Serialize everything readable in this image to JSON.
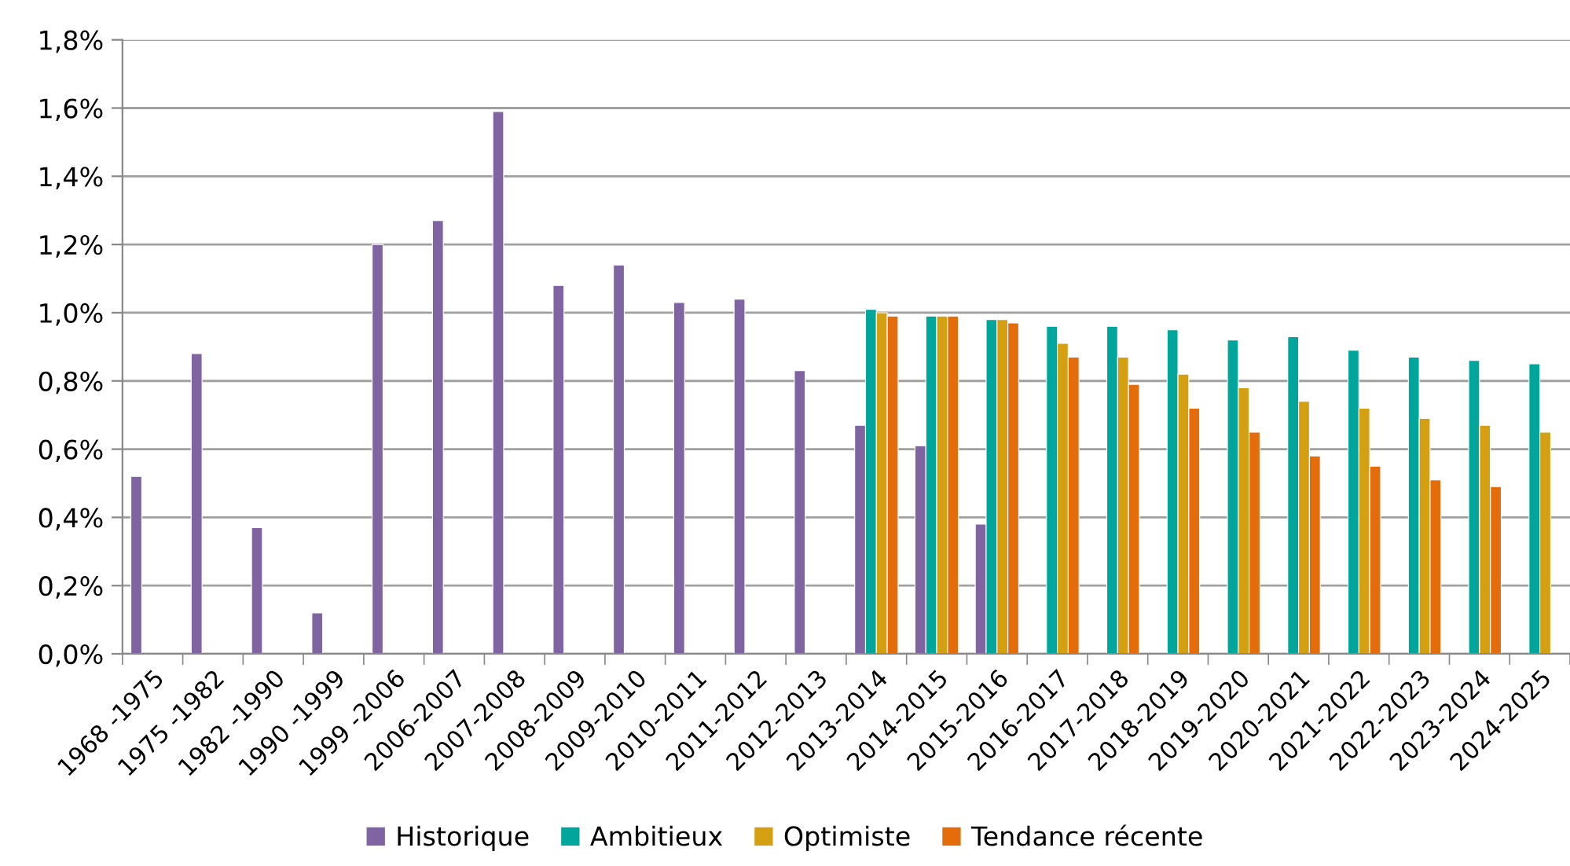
{
  "chart_data": {
    "type": "bar",
    "categories": [
      "1968 -1975",
      "1975 -1982",
      "1982 -1990",
      "1990 -1999",
      "1999 -2006",
      "2006-2007",
      "2007-2008",
      "2008-2009",
      "2009-2010",
      "2010-2011",
      "2011-2012",
      "2012-2013",
      "2013-2014",
      "2014-2015",
      "2015-2016",
      "2016-2017",
      "2017-2018",
      "2018-2019",
      "2019-2020",
      "2020-2021",
      "2021-2022",
      "2022-2023",
      "2023-2024",
      "2024-2025"
    ],
    "series": [
      {
        "name": "Historique",
        "color": "#8064a2",
        "values": [
          0.52,
          0.88,
          0.37,
          0.12,
          1.2,
          1.27,
          1.59,
          1.08,
          1.14,
          1.03,
          1.04,
          0.83,
          0.67,
          0.61,
          0.38,
          null,
          null,
          null,
          null,
          null,
          null,
          null,
          null,
          null
        ]
      },
      {
        "name": "Ambitieux",
        "color": "#00a59b",
        "values": [
          null,
          null,
          null,
          null,
          null,
          null,
          null,
          null,
          null,
          null,
          null,
          null,
          1.01,
          0.99,
          0.98,
          0.96,
          0.96,
          0.95,
          0.92,
          0.93,
          0.89,
          0.87,
          0.86,
          0.85
        ]
      },
      {
        "name": "Optimiste",
        "color": "#d4a011",
        "values": [
          null,
          null,
          null,
          null,
          null,
          null,
          null,
          null,
          null,
          null,
          null,
          null,
          1.0,
          0.99,
          0.98,
          0.91,
          0.87,
          0.82,
          0.78,
          0.74,
          0.72,
          0.69,
          0.67,
          0.65
        ]
      },
      {
        "name": "Tendance récente",
        "color": "#e46c0a",
        "values": [
          null,
          null,
          null,
          null,
          null,
          null,
          null,
          null,
          null,
          null,
          null,
          null,
          0.99,
          0.99,
          0.97,
          0.87,
          0.79,
          0.72,
          0.65,
          0.58,
          0.55,
          0.51,
          0.49,
          null
        ]
      }
    ],
    "ylim": [
      0,
      1.8
    ],
    "yticks": [
      {
        "value": 0,
        "label": "0,0%"
      },
      {
        "value": 0.2,
        "label": "0,2%"
      },
      {
        "value": 0.4,
        "label": "0,4%"
      },
      {
        "value": 0.6,
        "label": "0,6%"
      },
      {
        "value": 0.8,
        "label": "0,8%"
      },
      {
        "value": 1.0,
        "label": "1,0%"
      },
      {
        "value": 1.2,
        "label": "1,2%"
      },
      {
        "value": 1.4,
        "label": "1,4%"
      },
      {
        "value": 1.6,
        "label": "1,6%"
      },
      {
        "value": 1.8,
        "label": "1,8%"
      }
    ],
    "grid": "y",
    "legend": "bottom"
  }
}
